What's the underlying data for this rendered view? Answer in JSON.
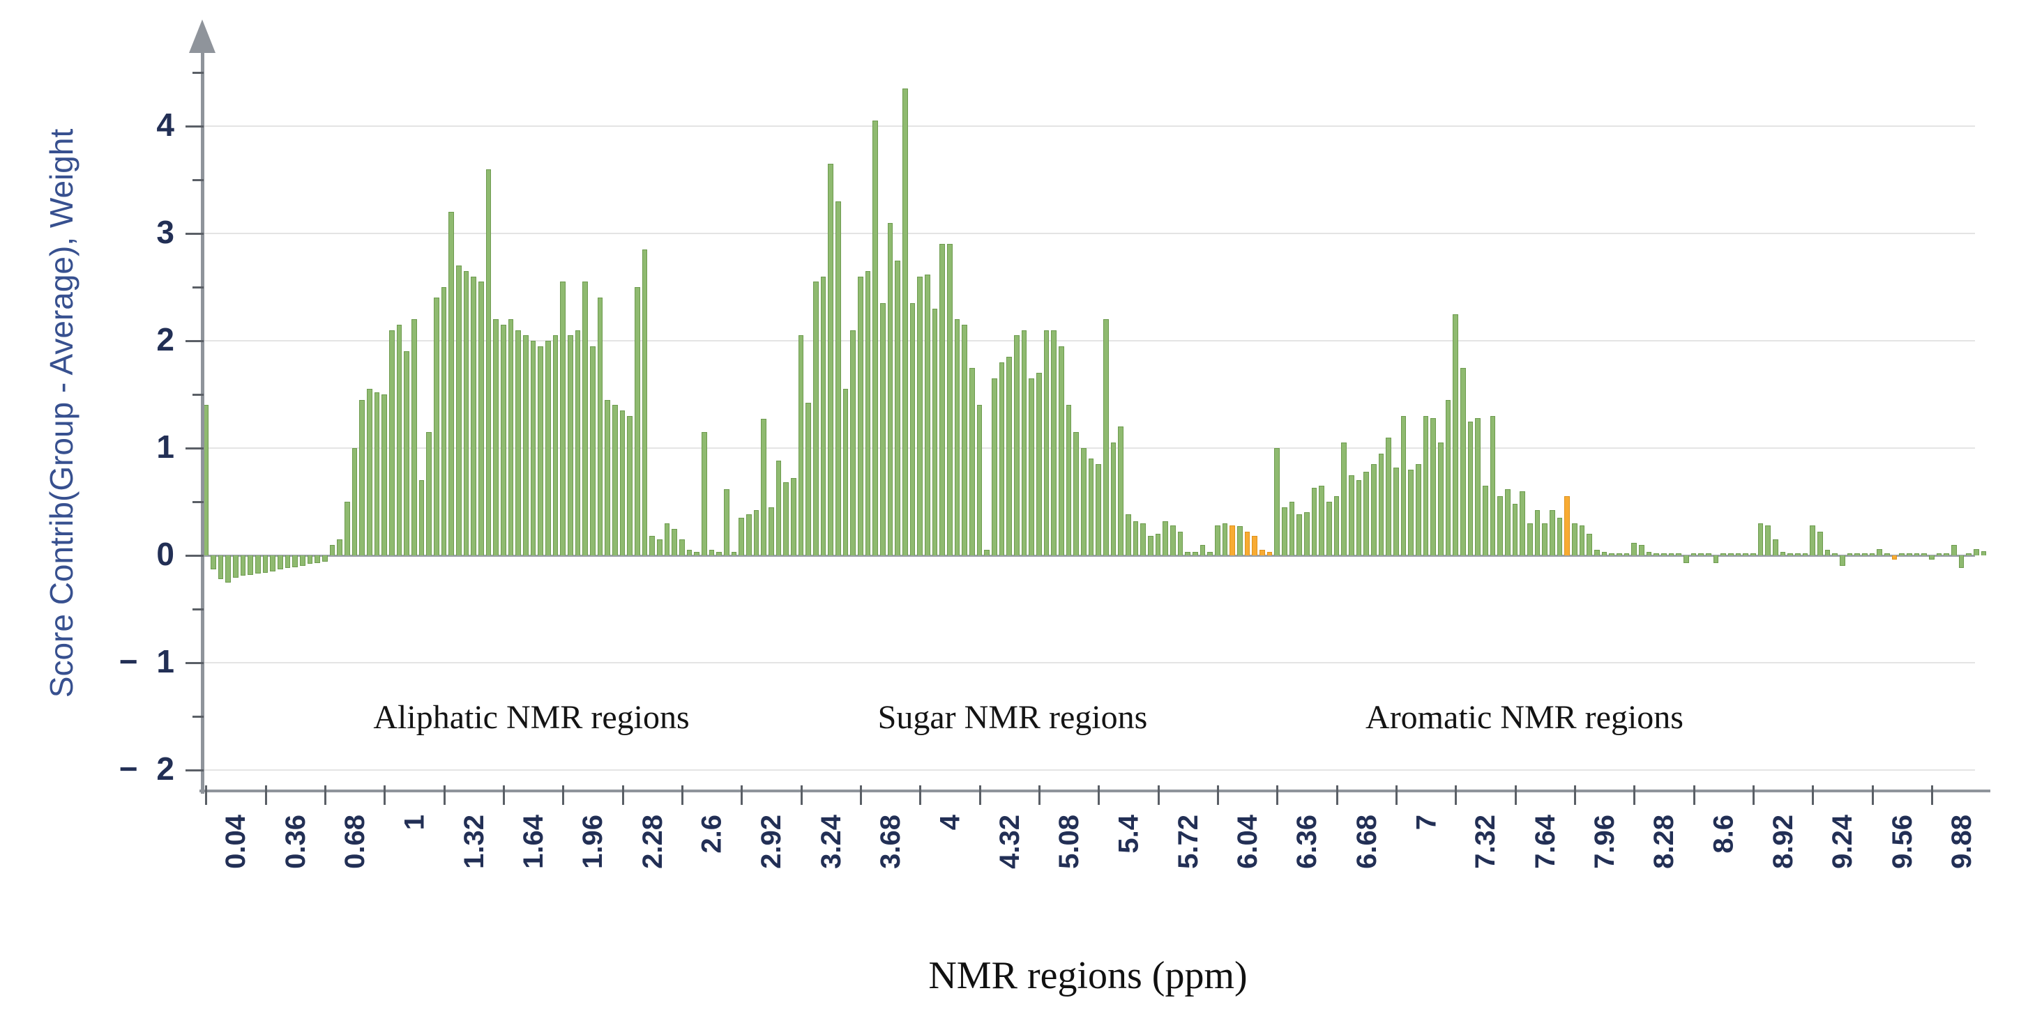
{
  "chart_data": {
    "type": "bar",
    "title": "",
    "xlabel": "NMR regions (ppm)",
    "ylabel": "Score Contrib(Group - Average), Weight",
    "ylim": [
      -2.2,
      4.6
    ],
    "grid": "horizontal",
    "legend_position": "none",
    "y_ticks": [
      {
        "v": 4,
        "label": "4"
      },
      {
        "v": 3,
        "label": "3"
      },
      {
        "v": 2,
        "label": "2"
      },
      {
        "v": 1,
        "label": "1"
      },
      {
        "v": 0,
        "label": "0"
      },
      {
        "v": -1,
        "label": "− 1"
      },
      {
        "v": -2,
        "label": "− 2"
      }
    ],
    "y_minor_ticks": [
      4.5,
      3.5,
      2.5,
      1.5,
      0.5,
      -0.5,
      -1.5
    ],
    "x_tick_labels": [
      "0.04",
      "0.36",
      "0.68",
      "1",
      "1.32",
      "1.64",
      "1.96",
      "2.28",
      "2.6",
      "2.92",
      "3.24",
      "3.68",
      "4",
      "4.32",
      "5.08",
      "5.4",
      "5.72",
      "6.04",
      "6.36",
      "6.68",
      "7",
      "7.32",
      "7.64",
      "7.96",
      "8.28",
      "8.6",
      "8.92",
      "9.24",
      "9.56",
      "9.88"
    ],
    "bars_per_labeled_tick": 8,
    "values": [
      1.4,
      -0.13,
      -0.22,
      -0.25,
      -0.21,
      -0.19,
      -0.18,
      -0.17,
      -0.16,
      -0.15,
      -0.13,
      -0.12,
      -0.11,
      -0.1,
      -0.08,
      -0.07,
      -0.06,
      0.1,
      0.15,
      0.5,
      1.0,
      1.45,
      1.55,
      1.52,
      1.5,
      2.1,
      2.15,
      1.9,
      2.2,
      0.7,
      1.15,
      2.4,
      2.5,
      3.2,
      2.7,
      2.65,
      2.6,
      2.55,
      3.6,
      2.2,
      2.15,
      2.2,
      2.1,
      2.05,
      2.0,
      1.95,
      2.0,
      2.05,
      2.55,
      2.05,
      2.1,
      2.55,
      1.95,
      2.4,
      1.45,
      1.4,
      1.35,
      1.3,
      2.5,
      2.85,
      0.18,
      0.15,
      0.3,
      0.25,
      0.15,
      0.05,
      0.03,
      1.15,
      0.05,
      0.03,
      0.62,
      0.03,
      0.35,
      0.38,
      0.42,
      1.27,
      0.45,
      0.88,
      0.68,
      0.72,
      2.05,
      1.42,
      2.55,
      2.6,
      3.65,
      3.3,
      1.55,
      2.1,
      2.6,
      2.65,
      4.05,
      2.35,
      3.1,
      2.75,
      4.35,
      2.35,
      2.6,
      2.62,
      2.3,
      2.9,
      2.9,
      2.2,
      2.15,
      1.75,
      1.4,
      0.05,
      1.65,
      1.8,
      1.85,
      2.05,
      2.1,
      1.65,
      1.7,
      2.1,
      2.1,
      1.95,
      1.4,
      1.15,
      1.0,
      0.9,
      0.85,
      2.2,
      1.05,
      1.2,
      0.38,
      0.32,
      0.3,
      0.18,
      0.2,
      0.32,
      0.28,
      0.22,
      0.03,
      0.03,
      0.1,
      0.03,
      0.28,
      0.3,
      0.28,
      0.27,
      0.22,
      0.18,
      0.05,
      0.03,
      1.0,
      0.45,
      0.5,
      0.38,
      0.4,
      0.63,
      0.65,
      0.5,
      0.55,
      1.05,
      0.75,
      0.7,
      0.78,
      0.85,
      0.95,
      1.1,
      0.82,
      1.3,
      0.8,
      0.85,
      1.3,
      1.28,
      1.05,
      1.45,
      2.25,
      1.75,
      1.25,
      1.28,
      0.65,
      1.3,
      0.55,
      0.62,
      0.48,
      0.6,
      0.3,
      0.42,
      0.3,
      0.42,
      0.35,
      0.55,
      0.3,
      0.28,
      0.2,
      0.05,
      0.03,
      0.02,
      0.02,
      0.02,
      0.12,
      0.1,
      0.03,
      0.02,
      0.02,
      0.02,
      0.02,
      -0.07,
      0.02,
      0.02,
      0.02,
      -0.07,
      0.02,
      0.02,
      0.02,
      0.02,
      0.02,
      0.3,
      0.28,
      0.15,
      0.03,
      0.02,
      0.02,
      0.02,
      0.28,
      0.22,
      0.05,
      0.02,
      -0.1,
      0.02,
      0.02,
      0.02,
      0.02,
      0.06,
      0.02,
      -0.04,
      0.02,
      0.02,
      0.02,
      0.02,
      -0.04,
      0.02,
      0.02,
      0.1,
      -0.12,
      0.02,
      0.06,
      0.04
    ],
    "orange_indices": [
      138,
      140,
      141,
      142,
      143,
      183,
      227
    ],
    "annotations": [
      {
        "text": "Aliphatic NMR regions",
        "cx": 762,
        "top": 1002
      },
      {
        "text": "Sugar NMR regions",
        "cx": 1452,
        "top": 1002
      },
      {
        "text": "Aromatic NMR regions",
        "cx": 2186,
        "top": 1002
      }
    ],
    "colors": {
      "bar_green": "#8fba70",
      "bar_green_edge": "#6d9b4e",
      "bar_orange": "#f8ab33",
      "bar_orange_edge": "#de921c",
      "gridline": "#e4e4e4",
      "axis": "#8f949b",
      "tick_label": "#222f55",
      "y_title": "#37508f",
      "annotation_text": "#141414"
    }
  }
}
